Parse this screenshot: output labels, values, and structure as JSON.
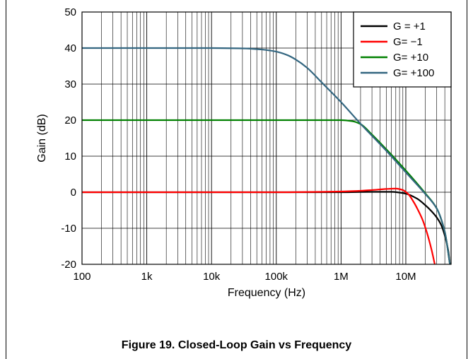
{
  "caption": "Figure 19. Closed-Loop Gain vs Frequency",
  "chart_data": {
    "type": "line",
    "title": "",
    "xlabel": "Frequency (Hz)",
    "ylabel": "Gain (dB)",
    "xscale": "log",
    "xlim": [
      100,
      50000000
    ],
    "ylim": [
      -20,
      50
    ],
    "grid": true,
    "legend_position": "top-right",
    "x_ticks": [
      {
        "value": 100,
        "label": "100"
      },
      {
        "value": 1000,
        "label": "1k"
      },
      {
        "value": 10000,
        "label": "10k"
      },
      {
        "value": 100000,
        "label": "100k"
      },
      {
        "value": 1000000,
        "label": "1M"
      },
      {
        "value": 10000000,
        "label": "10M"
      }
    ],
    "y_ticks": [
      {
        "value": -20,
        "label": "-20"
      },
      {
        "value": -10,
        "label": "-10"
      },
      {
        "value": 0,
        "label": "0"
      },
      {
        "value": 10,
        "label": "10"
      },
      {
        "value": 20,
        "label": "20"
      },
      {
        "value": 30,
        "label": "30"
      },
      {
        "value": 40,
        "label": "40"
      },
      {
        "value": 50,
        "label": "50"
      }
    ],
    "series": [
      {
        "name": "G = +1",
        "color": "#000000",
        "x": [
          100,
          1000,
          100000,
          1000000,
          3000000,
          6000000,
          10000000,
          15000000,
          20000000,
          25000000,
          30000000,
          35000000,
          40000000,
          45000000,
          48000000
        ],
        "y": [
          0,
          0,
          0,
          0,
          0.1,
          0.1,
          -0.4,
          -1.8,
          -3.6,
          -5.3,
          -7,
          -9,
          -12,
          -16,
          -20
        ]
      },
      {
        "name": "G= −1",
        "color": "#ff0000",
        "x": [
          100,
          1000,
          100000,
          1000000,
          2000000,
          3000000,
          5000000,
          7000000,
          9000000,
          11000000,
          13000000,
          15000000,
          18000000,
          21000000,
          25000000,
          28000000
        ],
        "y": [
          0,
          0,
          0,
          0.2,
          0.4,
          0.6,
          0.9,
          1.0,
          0.6,
          -0.6,
          -2.5,
          -4.5,
          -7.5,
          -11,
          -16,
          -20
        ]
      },
      {
        "name": "G= +10",
        "color": "#008000",
        "x": [
          100,
          1000,
          100000,
          1000000,
          1500000,
          2000000,
          3000000,
          5000000,
          10000000,
          20000000,
          30000000,
          40000000,
          48000000
        ],
        "y": [
          20,
          20,
          20,
          20,
          19.7,
          18.9,
          16,
          11.9,
          6,
          -0.3,
          -4.5,
          -11,
          -20
        ]
      },
      {
        "name": "G= +100",
        "color": "#336680",
        "x": [
          100,
          1000,
          10000,
          30000,
          60000,
          100000,
          150000,
          200000,
          300000,
          500000,
          1000000,
          2000000,
          5000000,
          10000000,
          20000000,
          30000000,
          40000000,
          48000000
        ],
        "y": [
          40,
          40,
          40,
          39.9,
          39.6,
          39,
          38,
          36.8,
          34.5,
          30.5,
          25,
          19,
          11.5,
          5.5,
          -0.5,
          -4.5,
          -11,
          -20
        ]
      }
    ]
  }
}
